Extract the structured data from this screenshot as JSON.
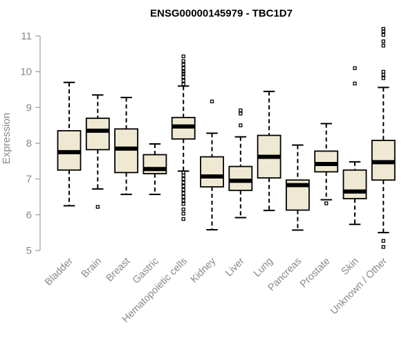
{
  "chart_data": {
    "type": "boxplot",
    "title": "ENSG00000145979 - TBC1D7",
    "ylabel": "Expression",
    "xlabel": "",
    "ylim": [
      5,
      11
    ],
    "yticks": [
      5,
      6,
      7,
      8,
      9,
      10,
      11
    ],
    "grid": false,
    "colors": {
      "box_fill": "#efe9d3",
      "box_stroke": "#000000",
      "axis": "#888888"
    },
    "categories": [
      "Bladder",
      "Brain",
      "Breast",
      "Gastric",
      "Hematopoietic cells",
      "Kidney",
      "Liver",
      "Lung",
      "Pancreas",
      "Prostate",
      "Skin",
      "Unknown / Other"
    ],
    "boxes": [
      {
        "label": "Bladder",
        "whisker_low": 6.25,
        "q1": 7.25,
        "median": 7.75,
        "q3": 8.35,
        "whisker_high": 9.7,
        "outliers": []
      },
      {
        "label": "Brain",
        "whisker_low": 6.72,
        "q1": 7.82,
        "median": 8.35,
        "q3": 8.7,
        "whisker_high": 9.35,
        "outliers": [
          6.22
        ]
      },
      {
        "label": "Breast",
        "whisker_low": 6.57,
        "q1": 7.18,
        "median": 7.85,
        "q3": 8.4,
        "whisker_high": 9.28,
        "outliers": []
      },
      {
        "label": "Gastric",
        "whisker_low": 6.57,
        "q1": 7.15,
        "median": 7.28,
        "q3": 7.68,
        "whisker_high": 7.98,
        "outliers": []
      },
      {
        "label": "Hematopoietic cells",
        "whisker_low": 7.22,
        "q1": 8.12,
        "median": 8.47,
        "q3": 8.72,
        "whisker_high": 9.6,
        "outliers": [
          9.65,
          9.75,
          9.85,
          9.95,
          10.0,
          10.1,
          10.2,
          10.3,
          10.43,
          7.18,
          7.1,
          7.0,
          6.9,
          6.8,
          6.7,
          6.6,
          6.5,
          6.4,
          6.3,
          6.15,
          6.03,
          5.88
        ]
      },
      {
        "label": "Kidney",
        "whisker_low": 5.58,
        "q1": 6.78,
        "median": 7.07,
        "q3": 7.62,
        "whisker_high": 8.28,
        "outliers": [
          9.17
        ]
      },
      {
        "label": "Liver",
        "whisker_low": 5.92,
        "q1": 6.68,
        "median": 6.95,
        "q3": 7.35,
        "whisker_high": 8.18,
        "outliers": [
          8.5,
          8.83,
          8.92
        ]
      },
      {
        "label": "Lung",
        "whisker_low": 6.12,
        "q1": 7.03,
        "median": 7.62,
        "q3": 8.22,
        "whisker_high": 9.45,
        "outliers": []
      },
      {
        "label": "Pancreas",
        "whisker_low": 5.57,
        "q1": 6.13,
        "median": 6.83,
        "q3": 6.97,
        "whisker_high": 7.95,
        "outliers": []
      },
      {
        "label": "Prostate",
        "whisker_low": 6.42,
        "q1": 7.2,
        "median": 7.42,
        "q3": 7.78,
        "whisker_high": 8.55,
        "outliers": [
          6.32
        ]
      },
      {
        "label": "Skin",
        "whisker_low": 5.73,
        "q1": 6.45,
        "median": 6.65,
        "q3": 7.25,
        "whisker_high": 7.48,
        "outliers": [
          9.67,
          10.1
        ]
      },
      {
        "label": "Unknown / Other",
        "whisker_low": 5.5,
        "q1": 6.97,
        "median": 7.47,
        "q3": 8.08,
        "whisker_high": 9.56,
        "outliers": [
          9.82,
          9.92,
          10.0,
          10.73,
          10.85,
          11.03,
          11.13,
          11.2,
          5.27,
          5.1
        ]
      }
    ]
  }
}
